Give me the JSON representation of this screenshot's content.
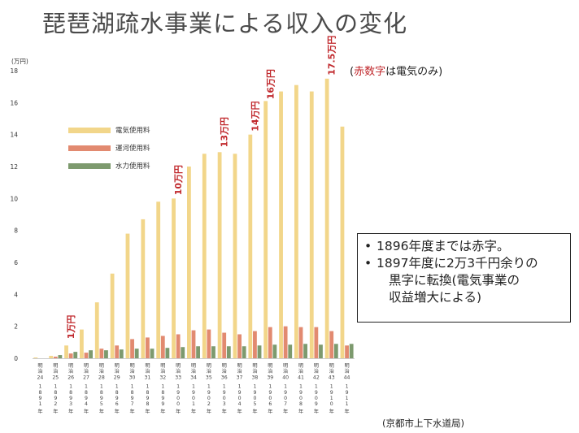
{
  "title": "琵琶湖疏水事業による収入の変化",
  "colors": {
    "electric": "#f2d68a",
    "canal": "#e28a70",
    "water": "#7d9a6e",
    "annotation_red": "#c0282c"
  },
  "red_note": {
    "open": "(",
    "red_part": "赤数字",
    "rest": "は電気のみ)"
  },
  "notes": [
    {
      "text": "1896年度までは赤字。",
      "bullet": true
    },
    {
      "text": "1897年度に2万3千円余りの",
      "bullet": true
    },
    {
      "text": "黒字に転換(電気事業の",
      "bullet": false
    },
    {
      "text": "収益増大による)",
      "bullet": false
    }
  ],
  "source": "(京都市上下水道局)",
  "chart_data": {
    "type": "bar",
    "unit_label": "(万円)",
    "ylim": [
      0,
      18
    ],
    "yticks": [
      0,
      2,
      4,
      6,
      8,
      10,
      12,
      14,
      16,
      18
    ],
    "categories": [
      {
        "era": "明治",
        "num": "24",
        "year": "1891",
        "nen": "年"
      },
      {
        "era": "明治",
        "num": "25",
        "year": "1892",
        "nen": "年"
      },
      {
        "era": "明治",
        "num": "26",
        "year": "1893",
        "nen": "年"
      },
      {
        "era": "明治",
        "num": "27",
        "year": "1894",
        "nen": "年"
      },
      {
        "era": "明治",
        "num": "28",
        "year": "1895",
        "nen": "年"
      },
      {
        "era": "明治",
        "num": "29",
        "year": "1896",
        "nen": "年"
      },
      {
        "era": "明治",
        "num": "30",
        "year": "1897",
        "nen": "年"
      },
      {
        "era": "明治",
        "num": "31",
        "year": "1898",
        "nen": "年"
      },
      {
        "era": "明治",
        "num": "32",
        "year": "1899",
        "nen": "年"
      },
      {
        "era": "明治",
        "num": "33",
        "year": "1900",
        "nen": "年"
      },
      {
        "era": "明治",
        "num": "34",
        "year": "1901",
        "nen": "年"
      },
      {
        "era": "明治",
        "num": "35",
        "year": "1902",
        "nen": "年"
      },
      {
        "era": "明治",
        "num": "36",
        "year": "1903",
        "nen": "年"
      },
      {
        "era": "明治",
        "num": "37",
        "year": "1904",
        "nen": "年"
      },
      {
        "era": "明治",
        "num": "38",
        "year": "1905",
        "nen": "年"
      },
      {
        "era": "明治",
        "num": "39",
        "year": "1906",
        "nen": "年"
      },
      {
        "era": "明治",
        "num": "40",
        "year": "1907",
        "nen": "年"
      },
      {
        "era": "明治",
        "num": "41",
        "year": "1908",
        "nen": "年"
      },
      {
        "era": "明治",
        "num": "42",
        "year": "1909",
        "nen": "年"
      },
      {
        "era": "明治",
        "num": "43",
        "year": "1910",
        "nen": "年"
      },
      {
        "era": "明治",
        "num": "44",
        "year": "1911",
        "nen": "年"
      }
    ],
    "series": [
      {
        "name": "電気使用料",
        "color_key": "electric",
        "values": [
          0.05,
          0.15,
          0.8,
          1.8,
          3.5,
          5.3,
          7.8,
          8.7,
          9.8,
          10.0,
          12.0,
          12.8,
          12.9,
          12.8,
          14.0,
          16.1,
          16.7,
          17.1,
          16.7,
          17.5,
          14.5
        ]
      },
      {
        "name": "運河使用料",
        "color_key": "canal",
        "values": [
          0.0,
          0.1,
          0.3,
          0.35,
          0.6,
          0.8,
          1.2,
          1.3,
          1.4,
          1.5,
          1.75,
          1.8,
          1.6,
          1.5,
          1.7,
          1.95,
          2.0,
          1.95,
          1.95,
          1.7,
          0.8
        ]
      },
      {
        "name": "水力使用料",
        "color_key": "water",
        "values": [
          0.0,
          0.2,
          0.4,
          0.5,
          0.5,
          0.55,
          0.6,
          0.6,
          0.65,
          0.7,
          0.75,
          0.75,
          0.75,
          0.75,
          0.8,
          0.85,
          0.85,
          0.9,
          0.85,
          0.9,
          0.9
        ]
      }
    ],
    "annotations": [
      {
        "label": "1万円",
        "category_index": 2,
        "value": 1
      },
      {
        "label": "10万円",
        "category_index": 9,
        "value": 10
      },
      {
        "label": "13万円",
        "category_index": 12,
        "value": 13
      },
      {
        "label": "14万円",
        "category_index": 14,
        "value": 14
      },
      {
        "label": "16万円",
        "category_index": 15,
        "value": 16
      },
      {
        "label": "17.5万円",
        "category_index": 19,
        "value": 17.5
      }
    ]
  }
}
